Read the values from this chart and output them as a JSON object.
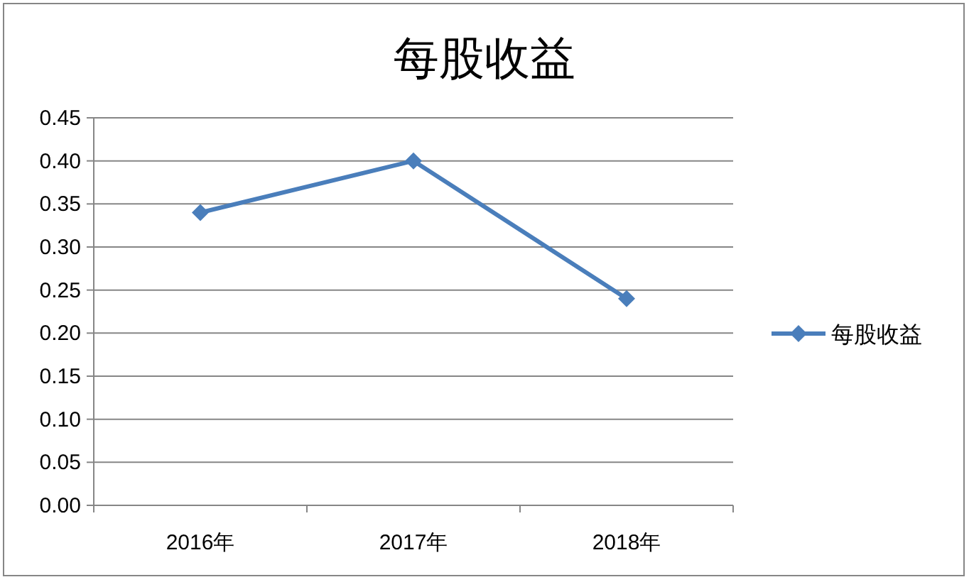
{
  "chart_data": {
    "type": "line",
    "title": "每股收益",
    "categories": [
      "2016年",
      "2017年",
      "2018年"
    ],
    "series": [
      {
        "name": "每股收益",
        "color": "#4a7ebb",
        "values": [
          0.34,
          0.4,
          0.24
        ]
      }
    ],
    "ylim": [
      0,
      0.45
    ],
    "yticks": [
      {
        "value": 0,
        "label": "0.00"
      },
      {
        "value": 0.05,
        "label": "0.05"
      },
      {
        "value": 0.1,
        "label": "0.10"
      },
      {
        "value": 0.15,
        "label": "0.15"
      },
      {
        "value": 0.2,
        "label": "0.20"
      },
      {
        "value": 0.25,
        "label": "0.25"
      },
      {
        "value": 0.3,
        "label": "0.30"
      },
      {
        "value": 0.35,
        "label": "0.35"
      },
      {
        "value": 0.4,
        "label": "0.40"
      },
      {
        "value": 0.45,
        "label": "0.45"
      }
    ],
    "grid": "y",
    "legend": "right",
    "marker": "diamond",
    "line_style": "solid"
  }
}
